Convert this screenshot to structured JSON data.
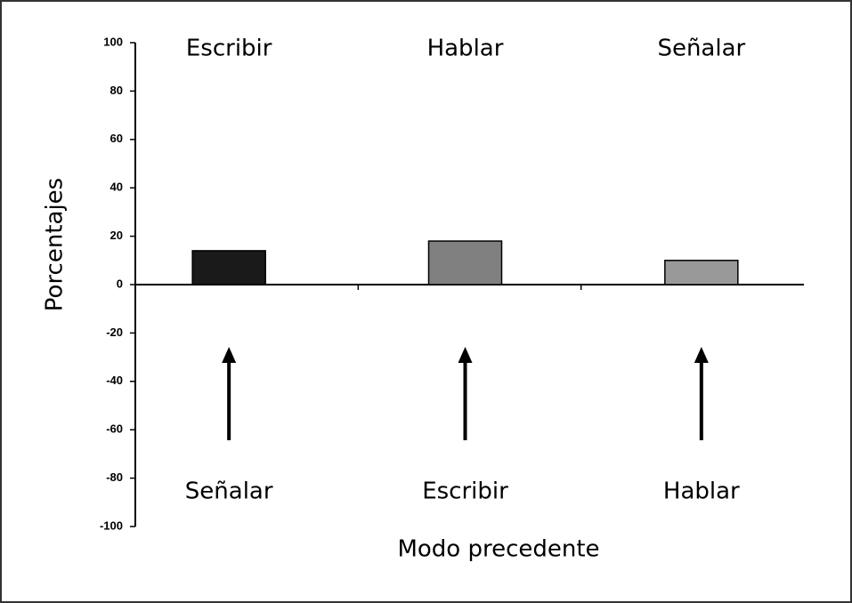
{
  "chart_data": {
    "type": "bar",
    "categories": [
      "Escribir",
      "Hablar",
      "Señalar"
    ],
    "values": [
      14,
      18,
      10
    ],
    "colors": [
      "#1a1a1a",
      "#808080",
      "#999999"
    ],
    "precedent_labels": [
      "Señalar",
      "Escribir",
      "Hablar"
    ],
    "xlabel": "Modo precedente",
    "ylabel": "Porcentajes",
    "ylim": [
      -100,
      100
    ],
    "yticks": [
      -100,
      -80,
      -60,
      -40,
      -20,
      0,
      20,
      40,
      60,
      80,
      100
    ],
    "grid": false
  }
}
